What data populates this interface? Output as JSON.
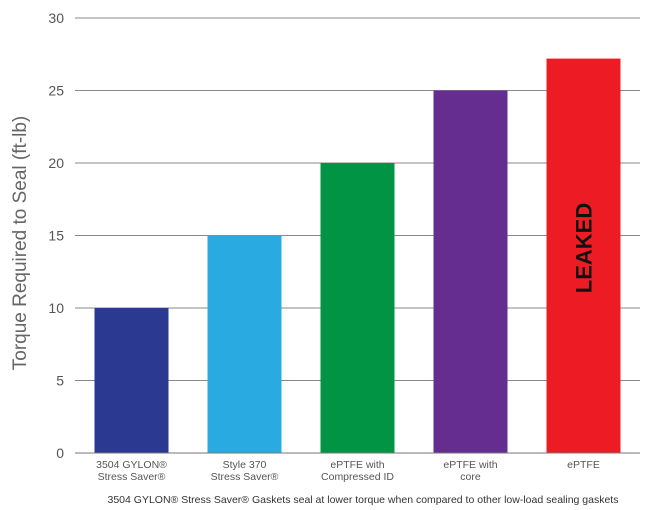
{
  "chart_data": {
    "type": "bar",
    "categories": [
      [
        "3504 GYLON®",
        "Stress Saver®"
      ],
      [
        "Style 370",
        "Stress Saver®"
      ],
      [
        "ePTFE with",
        "Compressed ID"
      ],
      [
        "ePTFE with",
        "core"
      ],
      [
        "ePTFE"
      ]
    ],
    "values": [
      10,
      15,
      20,
      25,
      27.2
    ],
    "colors": [
      "#2b3990",
      "#29abe2",
      "#009444",
      "#662d91",
      "#ed1c24"
    ],
    "ylabel": "Torque Required to Seal (ft-lb)",
    "ylim": [
      0,
      30
    ],
    "yticks": [
      0,
      5,
      10,
      15,
      20,
      25,
      30
    ],
    "grid": true,
    "annotations": [
      {
        "bar_index": 4,
        "text": "LEAKED",
        "orientation": "vertical"
      }
    ],
    "caption": "3504 GYLON® Stress Saver® Gaskets seal at lower torque when compared to other low-load sealing gaskets"
  }
}
